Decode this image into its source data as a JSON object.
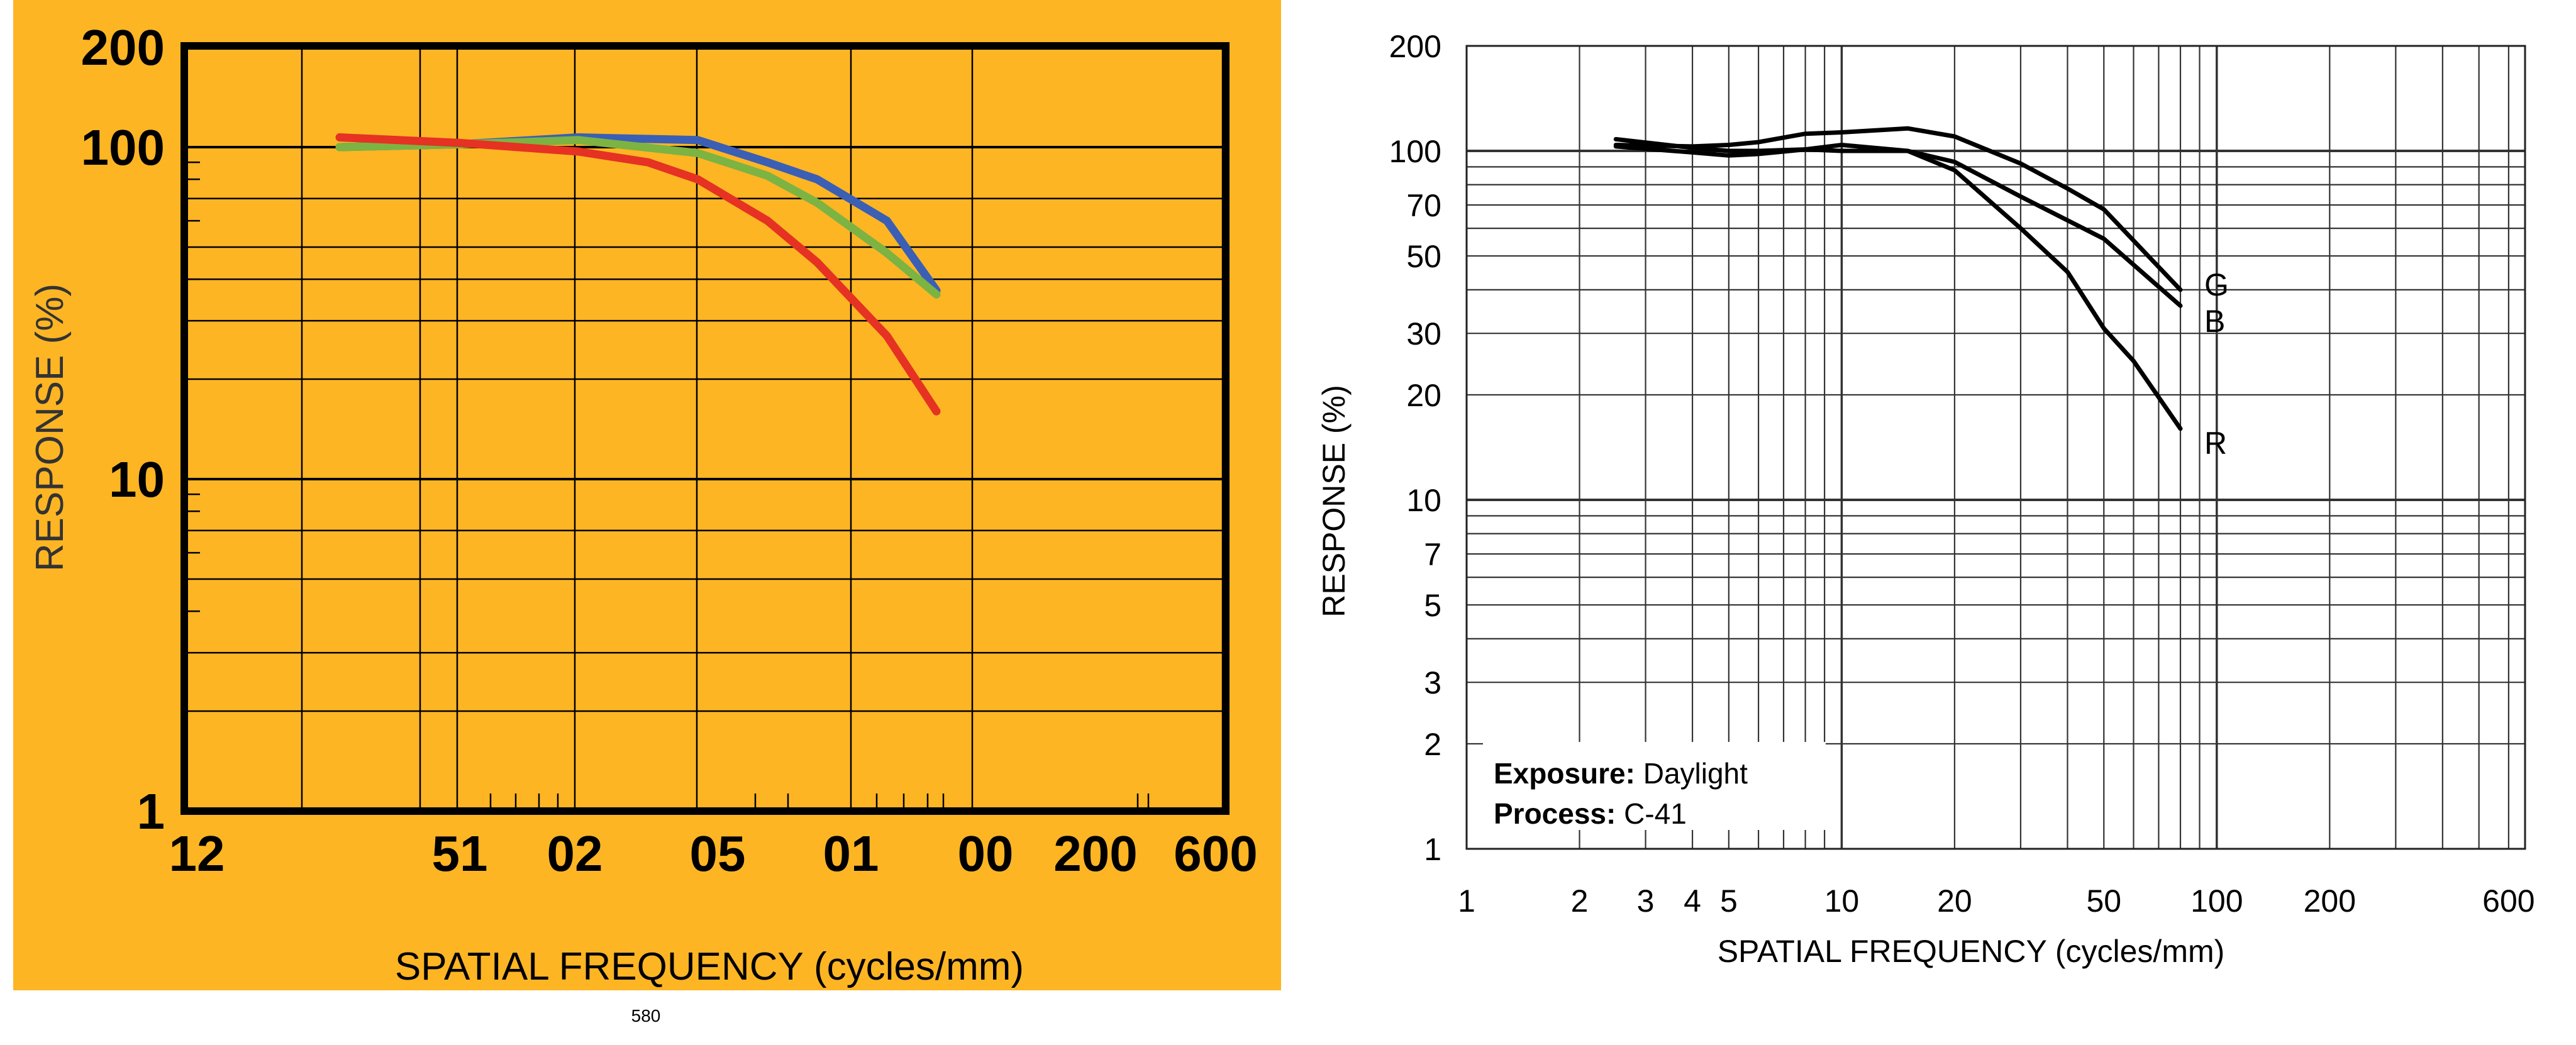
{
  "page_number": "580",
  "chart_data": [
    {
      "type": "line",
      "panel": "left",
      "background": "#fdb524",
      "xlabel": "SPATIAL FREQUENCY (cycles/mm)",
      "ylabel": "RESPONSE (%)",
      "y_scale": "log",
      "ylim": [
        1,
        200
      ],
      "ytick_labels": [
        "200",
        "100",
        "10",
        "1"
      ],
      "ytick_values": [
        200,
        100,
        10,
        1
      ],
      "xtick_labels": [
        "12",
        "51",
        "02",
        "05",
        "01",
        "00",
        "200",
        "600"
      ],
      "x_domain": [
        2.5,
        80
      ],
      "series": [
        {
          "name": "Blue",
          "color": "#3a5fb5",
          "x": [
            2.5,
            5,
            10,
            20,
            30,
            40,
            60,
            80
          ],
          "y": [
            100,
            102,
            107,
            105,
            90,
            80,
            60,
            37
          ]
        },
        {
          "name": "Green",
          "color": "#7cb342",
          "x": [
            2.5,
            5,
            10,
            20,
            30,
            40,
            60,
            80
          ],
          "y": [
            100,
            102,
            105,
            96,
            82,
            68,
            48,
            36
          ]
        },
        {
          "name": "Red",
          "color": "#e53222",
          "x": [
            2.5,
            5,
            10,
            15,
            20,
            30,
            40,
            60,
            80
          ],
          "y": [
            107,
            103,
            97,
            90,
            80,
            60,
            45,
            27,
            16
          ]
        }
      ]
    },
    {
      "type": "line",
      "panel": "right",
      "xlabel": "SPATIAL FREQUENCY (cycles/mm)",
      "ylabel": "RESPONSE (%)",
      "x_scale": "log",
      "y_scale": "log",
      "xlim": [
        1,
        600
      ],
      "ylim": [
        1,
        200
      ],
      "xtick_labels": [
        "1",
        "2",
        "3",
        "4",
        "5",
        "10",
        "20",
        "50",
        "100",
        "200",
        "600"
      ],
      "xtick_values": [
        1,
        2,
        3,
        4,
        5,
        10,
        20,
        50,
        100,
        200,
        600
      ],
      "ytick_labels": [
        "200",
        "100",
        "70",
        "50",
        "30",
        "20",
        "10",
        "7",
        "5",
        "3",
        "2",
        "1"
      ],
      "ytick_values": [
        200,
        100,
        70,
        50,
        30,
        20,
        10,
        7,
        5,
        3,
        2,
        1
      ],
      "annotations": {
        "exposure_label": "Exposure:",
        "exposure_value": "Daylight",
        "process_label": "Process:",
        "process_value": "C-41"
      },
      "series": [
        {
          "name": "G",
          "color": "#000000",
          "x": [
            2.5,
            4,
            5,
            6,
            8,
            10,
            15,
            20,
            30,
            40,
            50,
            80
          ],
          "y": [
            104,
            103,
            104,
            106,
            112,
            113,
            116,
            110,
            92,
            78,
            68,
            40
          ]
        },
        {
          "name": "B",
          "color": "#000000",
          "x": [
            2.5,
            4,
            5,
            6,
            8,
            10,
            15,
            20,
            25,
            30,
            50,
            80
          ],
          "y": [
            103,
            99,
            97,
            98,
            101,
            100,
            100,
            93,
            82,
            74,
            56,
            36
          ]
        },
        {
          "name": "R",
          "color": "#000000",
          "x": [
            2.5,
            4,
            5,
            6,
            8,
            10,
            15,
            20,
            30,
            40,
            50,
            60,
            80
          ],
          "y": [
            108,
            102,
            100,
            100,
            101,
            104,
            100,
            88,
            60,
            45,
            31,
            25,
            16
          ]
        }
      ]
    }
  ]
}
